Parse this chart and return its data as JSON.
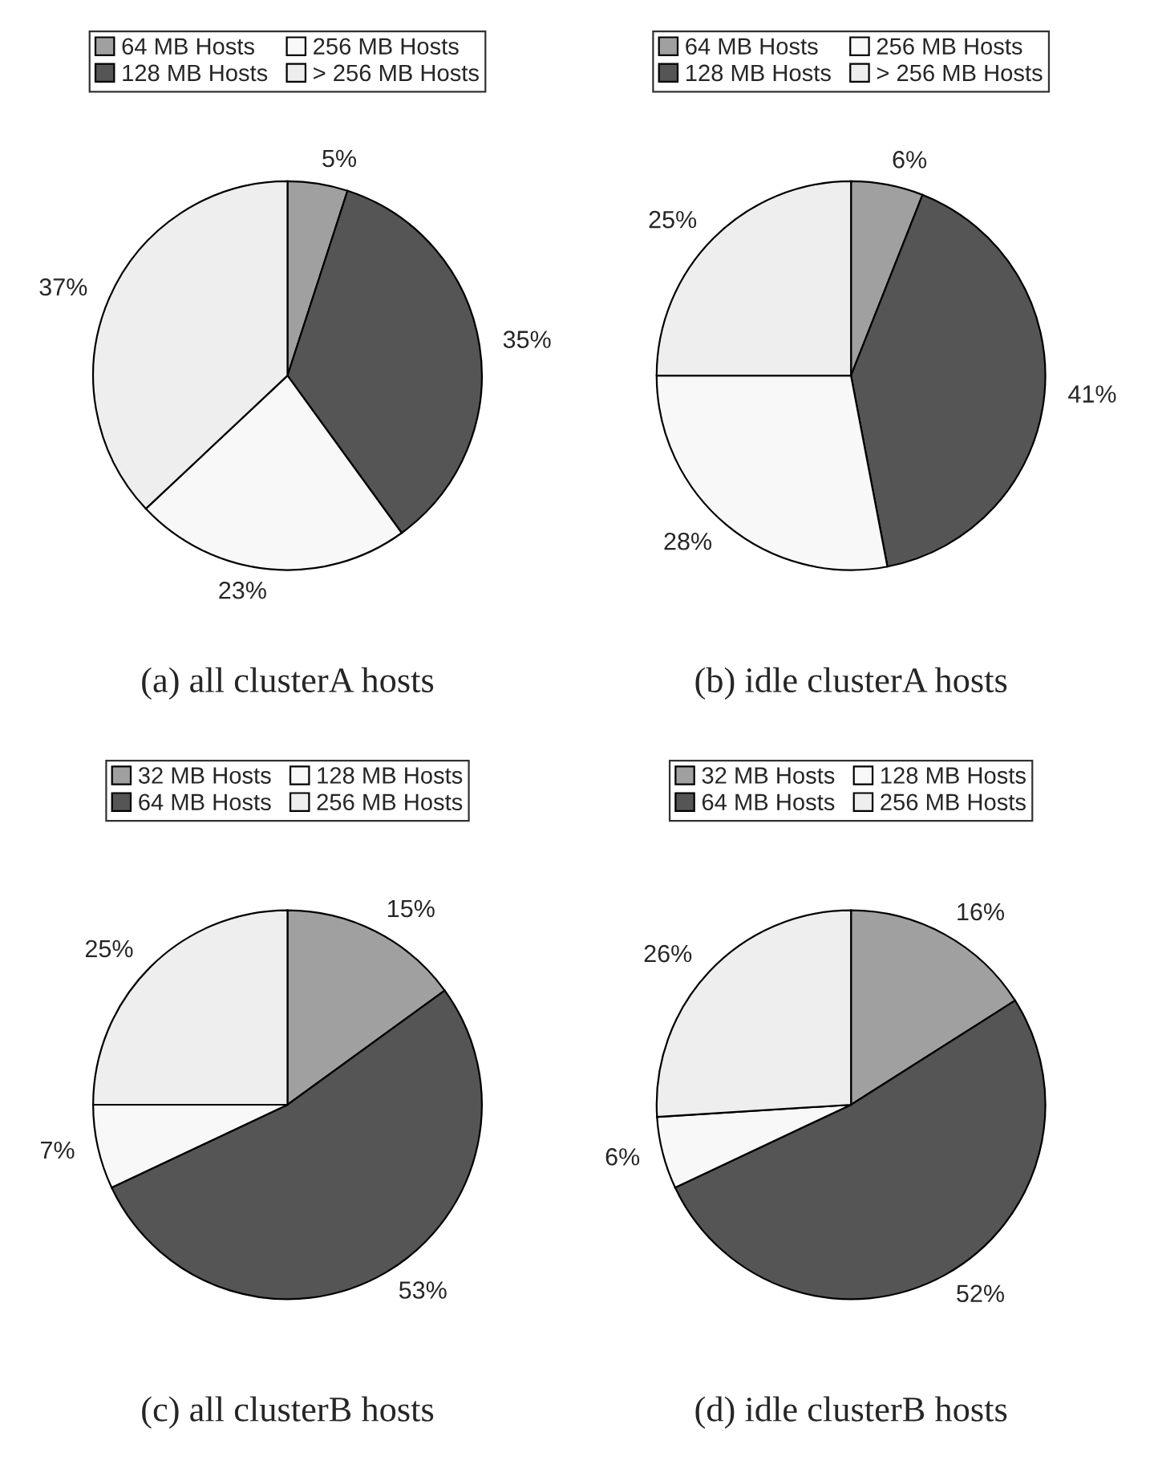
{
  "chart_data": [
    {
      "type": "pie",
      "title": "(a) all clusterA hosts",
      "categories": [
        "64 MB Hosts",
        "128 MB Hosts",
        "256 MB Hosts",
        "> 256 MB Hosts"
      ],
      "values": [
        5,
        35,
        23,
        37
      ],
      "value_labels": [
        "5%",
        "35%",
        "23%",
        "37%"
      ],
      "colors": [
        "#a0a0a0",
        "#555555",
        "#f8f8f8",
        "#eeeeee"
      ],
      "legend": "top"
    },
    {
      "type": "pie",
      "title": "(b) idle clusterA hosts",
      "categories": [
        "64 MB Hosts",
        "128 MB Hosts",
        "256 MB Hosts",
        "> 256 MB Hosts"
      ],
      "values": [
        6,
        41,
        28,
        25
      ],
      "value_labels": [
        "6%",
        "41%",
        "28%",
        "25%"
      ],
      "colors": [
        "#a0a0a0",
        "#555555",
        "#f8f8f8",
        "#eeeeee"
      ],
      "legend": "top"
    },
    {
      "type": "pie",
      "title": "(c) all clusterB hosts",
      "categories": [
        "32 MB Hosts",
        "64 MB Hosts",
        "128 MB Hosts",
        "256 MB Hosts"
      ],
      "values": [
        15,
        53,
        7,
        25
      ],
      "value_labels": [
        "15%",
        "53%",
        "7%",
        "25%"
      ],
      "colors": [
        "#a0a0a0",
        "#555555",
        "#f8f8f8",
        "#eeeeee"
      ],
      "legend": "top"
    },
    {
      "type": "pie",
      "title": "(d) idle clusterB hosts",
      "categories": [
        "32 MB Hosts",
        "64 MB Hosts",
        "128 MB Hosts",
        "256 MB Hosts"
      ],
      "values": [
        16,
        52,
        6,
        26
      ],
      "value_labels": [
        "16%",
        "52%",
        "6%",
        "26%"
      ],
      "colors": [
        "#a0a0a0",
        "#555555",
        "#f8f8f8",
        "#eeeeee"
      ],
      "legend": "top"
    }
  ]
}
